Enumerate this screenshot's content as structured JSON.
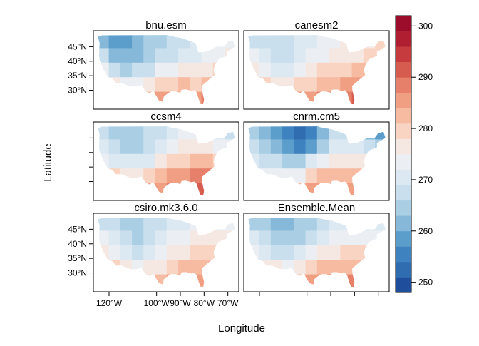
{
  "chart_data": {
    "type": "heatmap",
    "title": "",
    "xlabel": "Longitude",
    "ylabel": "Latitude",
    "panels": [
      {
        "name": "bnu.esm",
        "grid": [
          [
            260,
            258,
            259,
            262,
            263,
            265,
            267,
            268,
            269,
            270,
            272,
            274
          ],
          [
            266,
            262,
            260,
            261,
            263,
            266,
            268,
            270,
            271,
            272,
            272,
            276
          ],
          [
            272,
            268,
            265,
            266,
            268,
            272,
            274,
            275,
            276,
            277,
            278,
            280
          ],
          [
            278,
            276,
            274,
            273,
            276,
            278,
            280,
            281,
            280,
            282,
            283,
            284
          ],
          [
            284,
            283,
            282,
            281,
            282,
            284,
            285,
            286,
            286,
            287,
            290,
            288
          ]
        ]
      },
      {
        "name": "canesm2",
        "grid": [
          [
            266,
            266,
            267,
            268,
            269,
            270,
            272,
            274,
            275,
            276,
            277,
            278
          ],
          [
            272,
            269,
            268,
            268,
            270,
            272,
            274,
            275,
            276,
            277,
            278,
            280
          ],
          [
            276,
            273,
            271,
            271,
            273,
            276,
            278,
            279,
            280,
            281,
            282,
            283
          ],
          [
            281,
            279,
            277,
            276,
            278,
            280,
            282,
            283,
            284,
            286,
            288,
            288
          ],
          [
            286,
            285,
            284,
            283,
            284,
            286,
            287,
            288,
            289,
            292,
            296,
            292
          ]
        ]
      },
      {
        "name": "ccsm4",
        "grid": [
          [
            266,
            264,
            264,
            265,
            266,
            268,
            270,
            272,
            272,
            273,
            270,
            268
          ],
          [
            270,
            267,
            265,
            265,
            267,
            270,
            273,
            275,
            276,
            275,
            274,
            272
          ],
          [
            274,
            271,
            269,
            269,
            271,
            275,
            278,
            280,
            281,
            281,
            280,
            278
          ],
          [
            280,
            278,
            276,
            276,
            278,
            281,
            284,
            286,
            287,
            288,
            287,
            286
          ],
          [
            285,
            284,
            283,
            283,
            284,
            286,
            289,
            290,
            291,
            292,
            292,
            290
          ]
        ]
      },
      {
        "name": "cnrm.cm5",
        "grid": [
          [
            264,
            262,
            258,
            254,
            252,
            255,
            260,
            266,
            268,
            266,
            262,
            258
          ],
          [
            266,
            264,
            260,
            257,
            256,
            259,
            264,
            269,
            271,
            270,
            267,
            265
          ],
          [
            270,
            268,
            266,
            264,
            265,
            269,
            273,
            276,
            276,
            276,
            275,
            274
          ],
          [
            275,
            274,
            273,
            273,
            274,
            278,
            281,
            282,
            281,
            281,
            281,
            280
          ],
          [
            281,
            281,
            280,
            280,
            281,
            284,
            286,
            286,
            285,
            285,
            287,
            284
          ]
        ]
      },
      {
        "name": "csiro.mk3.6.0",
        "grid": [
          [
            268,
            266,
            265,
            265,
            266,
            268,
            270,
            271,
            272,
            272,
            272,
            272
          ],
          [
            272,
            269,
            266,
            265,
            267,
            270,
            273,
            274,
            275,
            275,
            275,
            276
          ],
          [
            276,
            272,
            269,
            268,
            270,
            273,
            276,
            277,
            278,
            278,
            279,
            280
          ],
          [
            282,
            279,
            275,
            274,
            275,
            277,
            280,
            281,
            281,
            282,
            283,
            283
          ],
          [
            286,
            285,
            281,
            280,
            280,
            282,
            284,
            285,
            285,
            286,
            287,
            286
          ]
        ]
      },
      {
        "name": "Ensemble.Mean",
        "grid": [
          [
            265,
            263,
            262,
            262,
            263,
            265,
            268,
            270,
            271,
            271,
            270,
            269
          ],
          [
            269,
            266,
            264,
            264,
            265,
            268,
            271,
            273,
            274,
            274,
            273,
            273
          ],
          [
            274,
            270,
            268,
            268,
            270,
            273,
            276,
            277,
            278,
            279,
            279,
            279
          ],
          [
            279,
            277,
            275,
            274,
            276,
            279,
            281,
            282,
            282,
            283,
            284,
            284
          ],
          [
            284,
            283,
            282,
            281,
            282,
            284,
            286,
            287,
            287,
            288,
            290,
            288
          ]
        ]
      }
    ],
    "x_ticks": [
      "120°W",
      "100°W",
      "90°W",
      "80°W",
      "70°W"
    ],
    "x_tick_values": [
      -120,
      -100,
      -90,
      -80,
      -70
    ],
    "y_ticks": [
      "30°N",
      "35°N",
      "40°N",
      "45°N"
    ],
    "y_tick_values": [
      30,
      35,
      40,
      45
    ],
    "xlim": [
      -126,
      -66
    ],
    "ylim": [
      24,
      50
    ],
    "colorbar": {
      "ticks": [
        250,
        260,
        270,
        280,
        290,
        300
      ],
      "range": [
        248,
        302
      ],
      "levels": 18,
      "colors": [
        "#1f4e9c",
        "#2f6db0",
        "#3e82bf",
        "#5b9dcb",
        "#86b9d9",
        "#aacfe5",
        "#c9dfed",
        "#dce9f2",
        "#ebeef3",
        "#f5e8e2",
        "#f9d4c2",
        "#f7bba2",
        "#f09f82",
        "#e6806a",
        "#d65c4f",
        "#c63c3e",
        "#b01e32",
        "#9c0d2b"
      ]
    }
  }
}
